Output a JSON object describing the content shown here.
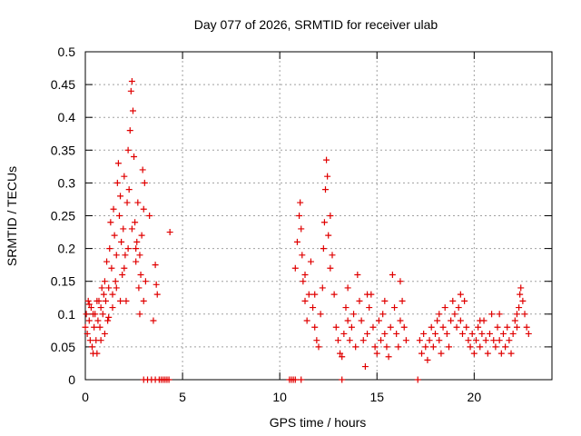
{
  "chart_data": {
    "type": "scatter",
    "title": "Day 077 of 2026, SRMTID for receiver ulab",
    "xlabel": "GPS time / hours",
    "ylabel": "SRMTID / TECUs",
    "xlim": [
      0,
      24
    ],
    "ylim": [
      0,
      0.5
    ],
    "xticks": [
      0,
      5,
      10,
      15,
      20
    ],
    "xtick_labels": [
      "0",
      "5",
      "10",
      "15",
      "20"
    ],
    "yticks": [
      0,
      0.05,
      0.1,
      0.15,
      0.2,
      0.25,
      0.3,
      0.35,
      0.4,
      0.45,
      0.5
    ],
    "ytick_labels": [
      "0",
      "0.05",
      "0.1",
      "0.15",
      "0.2",
      "0.25",
      "0.3",
      "0.35",
      "0.4",
      "0.45",
      "0.5"
    ],
    "grid": true,
    "marker": "+",
    "series": [
      {
        "name": "SRMTID",
        "color": "#e00000",
        "points": [
          [
            0.0,
            0.08
          ],
          [
            0.05,
            0.1
          ],
          [
            0.1,
            0.07
          ],
          [
            0.15,
            0.12
          ],
          [
            0.2,
            0.09
          ],
          [
            0.25,
            0.06
          ],
          [
            0.3,
            0.11
          ],
          [
            0.35,
            0.05
          ],
          [
            0.4,
            0.04
          ],
          [
            0.45,
            0.08
          ],
          [
            0.5,
            0.1
          ],
          [
            0.55,
            0.06
          ],
          [
            0.6,
            0.04
          ],
          [
            0.65,
            0.09
          ],
          [
            0.7,
            0.12
          ],
          [
            0.75,
            0.08
          ],
          [
            0.8,
            0.11
          ],
          [
            0.85,
            0.14
          ],
          [
            0.9,
            0.1
          ],
          [
            0.95,
            0.13
          ],
          [
            1.0,
            0.15
          ],
          [
            1.05,
            0.12
          ],
          [
            1.1,
            0.18
          ],
          [
            1.15,
            0.09
          ],
          [
            1.2,
            0.14
          ],
          [
            1.25,
            0.2
          ],
          [
            1.3,
            0.24
          ],
          [
            1.35,
            0.17
          ],
          [
            1.4,
            0.11
          ],
          [
            1.45,
            0.26
          ],
          [
            1.5,
            0.22
          ],
          [
            1.55,
            0.15
          ],
          [
            1.6,
            0.19
          ],
          [
            1.65,
            0.3
          ],
          [
            1.7,
            0.33
          ],
          [
            1.75,
            0.25
          ],
          [
            1.8,
            0.28
          ],
          [
            1.85,
            0.21
          ],
          [
            1.9,
            0.16
          ],
          [
            1.95,
            0.23
          ],
          [
            2.0,
            0.31
          ],
          [
            2.05,
            0.19
          ],
          [
            2.1,
            0.12
          ],
          [
            2.15,
            0.27
          ],
          [
            2.2,
            0.35
          ],
          [
            2.25,
            0.29
          ],
          [
            2.3,
            0.38
          ],
          [
            2.35,
            0.44
          ],
          [
            2.4,
            0.455
          ],
          [
            2.45,
            0.41
          ],
          [
            2.5,
            0.34
          ],
          [
            2.55,
            0.24
          ],
          [
            2.6,
            0.18
          ],
          [
            2.65,
            0.21
          ],
          [
            2.7,
            0.27
          ],
          [
            2.75,
            0.14
          ],
          [
            2.8,
            0.1
          ],
          [
            2.85,
            0.16
          ],
          [
            2.9,
            0.22
          ],
          [
            2.95,
            0.32
          ],
          [
            3.0,
            0.26
          ],
          [
            3.05,
            0.3
          ],
          [
            3.1,
            0.15
          ],
          [
            3.3,
            0.25
          ],
          [
            3.5,
            0.09
          ],
          [
            3.6,
            0.175
          ],
          [
            3.65,
            0.145
          ],
          [
            3.7,
            0.13
          ],
          [
            4.35,
            0.225
          ],
          [
            0.2,
            0.115
          ],
          [
            0.4,
            0.1
          ],
          [
            0.6,
            0.12
          ],
          [
            0.8,
            0.06
          ],
          [
            1.0,
            0.07
          ],
          [
            1.2,
            0.095
          ],
          [
            1.4,
            0.13
          ],
          [
            1.6,
            0.14
          ],
          [
            1.8,
            0.12
          ],
          [
            2.0,
            0.17
          ],
          [
            2.2,
            0.2
          ],
          [
            2.4,
            0.23
          ],
          [
            2.6,
            0.2
          ],
          [
            2.8,
            0.19
          ],
          [
            3.0,
            0.12
          ],
          [
            3.0,
            0.0
          ],
          [
            3.2,
            0.0
          ],
          [
            3.4,
            0.0
          ],
          [
            3.6,
            0.0
          ],
          [
            3.8,
            0.0
          ],
          [
            3.9,
            0.0
          ],
          [
            4.0,
            0.0
          ],
          [
            4.1,
            0.0
          ],
          [
            4.2,
            0.0
          ],
          [
            4.3,
            0.0
          ],
          [
            10.5,
            0.0
          ],
          [
            10.6,
            0.0
          ],
          [
            10.7,
            0.0
          ],
          [
            10.8,
            0.0
          ],
          [
            11.1,
            0.0
          ],
          [
            13.2,
            0.0
          ],
          [
            17.1,
            0.0
          ],
          [
            10.8,
            0.17
          ],
          [
            10.9,
            0.21
          ],
          [
            11.0,
            0.25
          ],
          [
            11.05,
            0.27
          ],
          [
            11.1,
            0.23
          ],
          [
            11.15,
            0.19
          ],
          [
            11.2,
            0.15
          ],
          [
            11.3,
            0.12
          ],
          [
            11.4,
            0.09
          ],
          [
            11.5,
            0.13
          ],
          [
            11.6,
            0.18
          ],
          [
            11.7,
            0.11
          ],
          [
            11.8,
            0.08
          ],
          [
            11.9,
            0.06
          ],
          [
            12.0,
            0.05
          ],
          [
            12.1,
            0.1
          ],
          [
            12.2,
            0.14
          ],
          [
            12.25,
            0.2
          ],
          [
            12.3,
            0.24
          ],
          [
            12.35,
            0.29
          ],
          [
            12.4,
            0.335
          ],
          [
            12.45,
            0.31
          ],
          [
            12.5,
            0.22
          ],
          [
            12.6,
            0.17
          ],
          [
            12.7,
            0.19
          ],
          [
            12.8,
            0.13
          ],
          [
            12.9,
            0.08
          ],
          [
            13.0,
            0.06
          ],
          [
            13.1,
            0.04
          ],
          [
            13.2,
            0.035
          ],
          [
            13.3,
            0.07
          ],
          [
            13.4,
            0.11
          ],
          [
            13.5,
            0.09
          ],
          [
            13.6,
            0.06
          ],
          [
            13.7,
            0.08
          ],
          [
            13.8,
            0.1
          ],
          [
            13.9,
            0.05
          ],
          [
            14.0,
            0.16
          ],
          [
            14.1,
            0.12
          ],
          [
            14.2,
            0.09
          ],
          [
            14.3,
            0.06
          ],
          [
            14.4,
            0.02
          ],
          [
            14.5,
            0.07
          ],
          [
            14.6,
            0.11
          ],
          [
            14.7,
            0.13
          ],
          [
            14.8,
            0.08
          ],
          [
            14.9,
            0.05
          ],
          [
            15.0,
            0.04
          ],
          [
            15.1,
            0.09
          ],
          [
            15.2,
            0.06
          ],
          [
            15.3,
            0.1
          ],
          [
            15.4,
            0.07
          ],
          [
            15.5,
            0.05
          ],
          [
            15.6,
            0.035
          ],
          [
            15.7,
            0.08
          ],
          [
            15.8,
            0.16
          ],
          [
            15.9,
            0.11
          ],
          [
            16.0,
            0.07
          ],
          [
            16.1,
            0.05
          ],
          [
            16.2,
            0.09
          ],
          [
            16.3,
            0.12
          ],
          [
            16.4,
            0.08
          ],
          [
            16.5,
            0.06
          ],
          [
            17.2,
            0.06
          ],
          [
            17.3,
            0.04
          ],
          [
            17.4,
            0.07
          ],
          [
            17.5,
            0.05
          ],
          [
            17.6,
            0.03
          ],
          [
            17.7,
            0.06
          ],
          [
            17.8,
            0.08
          ],
          [
            17.9,
            0.05
          ],
          [
            18.0,
            0.07
          ],
          [
            18.1,
            0.09
          ],
          [
            18.2,
            0.06
          ],
          [
            18.3,
            0.04
          ],
          [
            18.4,
            0.08
          ],
          [
            18.5,
            0.11
          ],
          [
            18.6,
            0.07
          ],
          [
            18.7,
            0.05
          ],
          [
            18.8,
            0.09
          ],
          [
            18.9,
            0.12
          ],
          [
            19.0,
            0.1
          ],
          [
            19.1,
            0.08
          ],
          [
            19.2,
            0.11
          ],
          [
            19.3,
            0.09
          ],
          [
            19.4,
            0.07
          ],
          [
            19.5,
            0.12
          ],
          [
            19.6,
            0.08
          ],
          [
            19.7,
            0.06
          ],
          [
            19.8,
            0.05
          ],
          [
            19.9,
            0.07
          ],
          [
            20.0,
            0.04
          ],
          [
            20.1,
            0.06
          ],
          [
            20.2,
            0.08
          ],
          [
            20.3,
            0.05
          ],
          [
            20.4,
            0.07
          ],
          [
            20.5,
            0.09
          ],
          [
            20.6,
            0.06
          ],
          [
            20.7,
            0.04
          ],
          [
            20.8,
            0.07
          ],
          [
            20.9,
            0.1
          ],
          [
            21.0,
            0.06
          ],
          [
            21.1,
            0.05
          ],
          [
            21.2,
            0.08
          ],
          [
            21.3,
            0.06
          ],
          [
            21.4,
            0.04
          ],
          [
            21.5,
            0.07
          ],
          [
            21.6,
            0.05
          ],
          [
            21.7,
            0.08
          ],
          [
            21.8,
            0.06
          ],
          [
            21.9,
            0.04
          ],
          [
            22.0,
            0.07
          ],
          [
            22.1,
            0.09
          ],
          [
            22.2,
            0.08
          ],
          [
            22.3,
            0.11
          ],
          [
            22.35,
            0.13
          ],
          [
            22.4,
            0.14
          ],
          [
            22.5,
            0.12
          ],
          [
            22.6,
            0.1
          ],
          [
            22.7,
            0.08
          ],
          [
            22.8,
            0.07
          ],
          [
            11.3,
            0.16
          ],
          [
            11.8,
            0.13
          ],
          [
            12.6,
            0.25
          ],
          [
            13.5,
            0.14
          ],
          [
            14.5,
            0.13
          ],
          [
            15.4,
            0.12
          ],
          [
            16.2,
            0.15
          ],
          [
            18.2,
            0.1
          ],
          [
            19.3,
            0.13
          ],
          [
            20.3,
            0.09
          ],
          [
            21.3,
            0.1
          ],
          [
            22.2,
            0.1
          ]
        ]
      }
    ]
  }
}
